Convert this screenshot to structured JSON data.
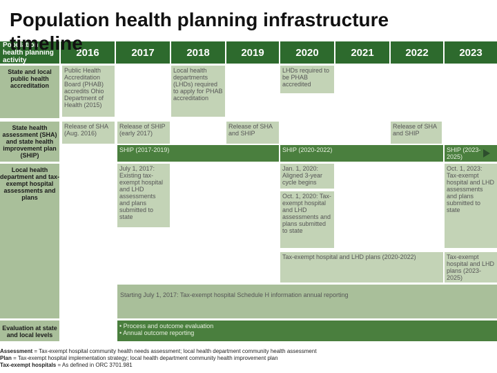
{
  "title": "Population health planning infrastructure timeline",
  "header": {
    "first": "Population health planning activity",
    "years": [
      "2016",
      "2017",
      "2018",
      "2019",
      "2020",
      "2021",
      "2022",
      "2023"
    ]
  },
  "rows": {
    "accreditation": {
      "label": "State and local public health accreditation",
      "phab": "Public Health Accreditation Board (PHAB) accredits Ohio Department of Health (2015)",
      "lhd_2018": "Local health departments (LHDs) required to apply for PHAB accreditation",
      "lhd_2020": "LHDs required to be PHAB accredited"
    },
    "sha": {
      "label": "State health assessment (SHA) and state health improvement plan (SHIP)",
      "sha_2016": "Release of SHA (Aug. 2016)",
      "ship_2017": "Release of SHIP (early 2017)",
      "sha_2019": "Release of SHA and SHIP",
      "sha_2022": "Release of SHA and SHIP",
      "ship_band1": "SHIP (2017-2019)",
      "ship_band2": "SHIP (2020-2022)",
      "ship_band3": "SHIP (2023-2025)"
    },
    "local": {
      "label": "Local health department and tax-exempt hospital assessments and plans",
      "july2017": "July 1, 2017: Existing tax-exempt hospital and LHD assessments and plans submitted to state",
      "jan2020": "Jan. 1, 2020: Aligned 3-year cycle begins",
      "oct2020": "Oct. 1, 2020: Tax-exempt hospital and LHD assessments and plans submitted to state",
      "oct2023": "Oct. 1, 2023: Tax-exempt hospital and LHD assessments and plans submitted to state",
      "plans_2020": "Tax-exempt hospital and LHD plans (2020-2022)",
      "plans_2023": "Tax-exempt hospital and LHD plans (2023-2025)",
      "schedule_h": "Starting July 1, 2017: Tax-exempt hospital Schedule H information annual reporting"
    },
    "evaluation": {
      "label": "Evaluation at state and local levels",
      "item1": "• Process and outcome evaluation",
      "item2": "• Annual outcome reporting"
    }
  },
  "footnotes": {
    "assessment_term": "Assessment",
    "assessment_def": " = Tax-exempt hospital community health needs assessment; local health department community health assessment",
    "plan_term": "Plan",
    "plan_def": " = Tax-exempt hospital implementation strategy; local health department community health improvement plan",
    "hosp_term": "Tax-exempt hospitals",
    "hosp_def": " = As defined in ORC 3701.981"
  },
  "colors": {
    "header": "#2d6a2d",
    "band": "#4a7f3e",
    "cell": "#c3d3b6",
    "label": "#a9bf9a"
  }
}
